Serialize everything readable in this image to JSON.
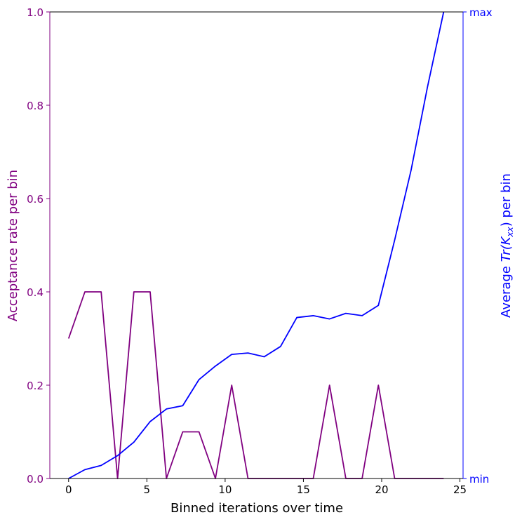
{
  "chart_data": {
    "type": "line",
    "xlabel": "Binned iterations over time",
    "xlim": [
      -1.2,
      25.2
    ],
    "xticks": [
      0,
      5,
      10,
      15,
      20,
      25
    ],
    "left_axis": {
      "label": "Acceptance rate per bin",
      "color": "#800080",
      "ylim": [
        0,
        1
      ],
      "ticks": [
        "0.0",
        "0.2",
        "0.4",
        "0.6",
        "0.8",
        "1.0"
      ]
    },
    "right_axis": {
      "label_prefix": "Average ",
      "label_math": "Tr(K",
      "label_sub": "xx",
      "label_close": ")",
      "label_suffix": " per bin",
      "color": "#0000ff",
      "ylim": [
        0,
        1
      ],
      "tick_min": "min",
      "tick_max": "max"
    },
    "series": [
      {
        "axis": "left",
        "color": "#800080",
        "x": [
          0,
          1.04,
          2.08,
          3.13,
          4.17,
          5.21,
          6.25,
          7.29,
          8.33,
          9.38,
          10.42,
          11.46,
          12.5,
          13.54,
          14.58,
          15.63,
          16.67,
          17.71,
          18.75,
          19.79,
          20.83,
          21.88,
          22.92,
          23.96
        ],
        "y": [
          0.3,
          0.4,
          0.4,
          0.0,
          0.4,
          0.4,
          0.0,
          0.1,
          0.1,
          0.0,
          0.2,
          0.0,
          0.0,
          0.0,
          0.0,
          0.0,
          0.2,
          0.0,
          0.0,
          0.2,
          0.0,
          0.0,
          0.0,
          0.0
        ]
      },
      {
        "axis": "right",
        "color": "#0000ff",
        "x": [
          0,
          1.04,
          2.08,
          3.13,
          4.17,
          5.21,
          6.25,
          7.29,
          8.33,
          9.38,
          10.42,
          11.46,
          12.5,
          13.54,
          14.58,
          15.63,
          16.67,
          17.71,
          18.75,
          19.79,
          20.83,
          21.88,
          22.92,
          23.96
        ],
        "y": [
          0.0,
          0.019,
          0.028,
          0.049,
          0.078,
          0.122,
          0.149,
          0.156,
          0.212,
          0.241,
          0.266,
          0.269,
          0.261,
          0.283,
          0.345,
          0.349,
          0.342,
          0.354,
          0.349,
          0.371,
          0.511,
          0.661,
          0.838,
          1.0
        ]
      }
    ]
  }
}
